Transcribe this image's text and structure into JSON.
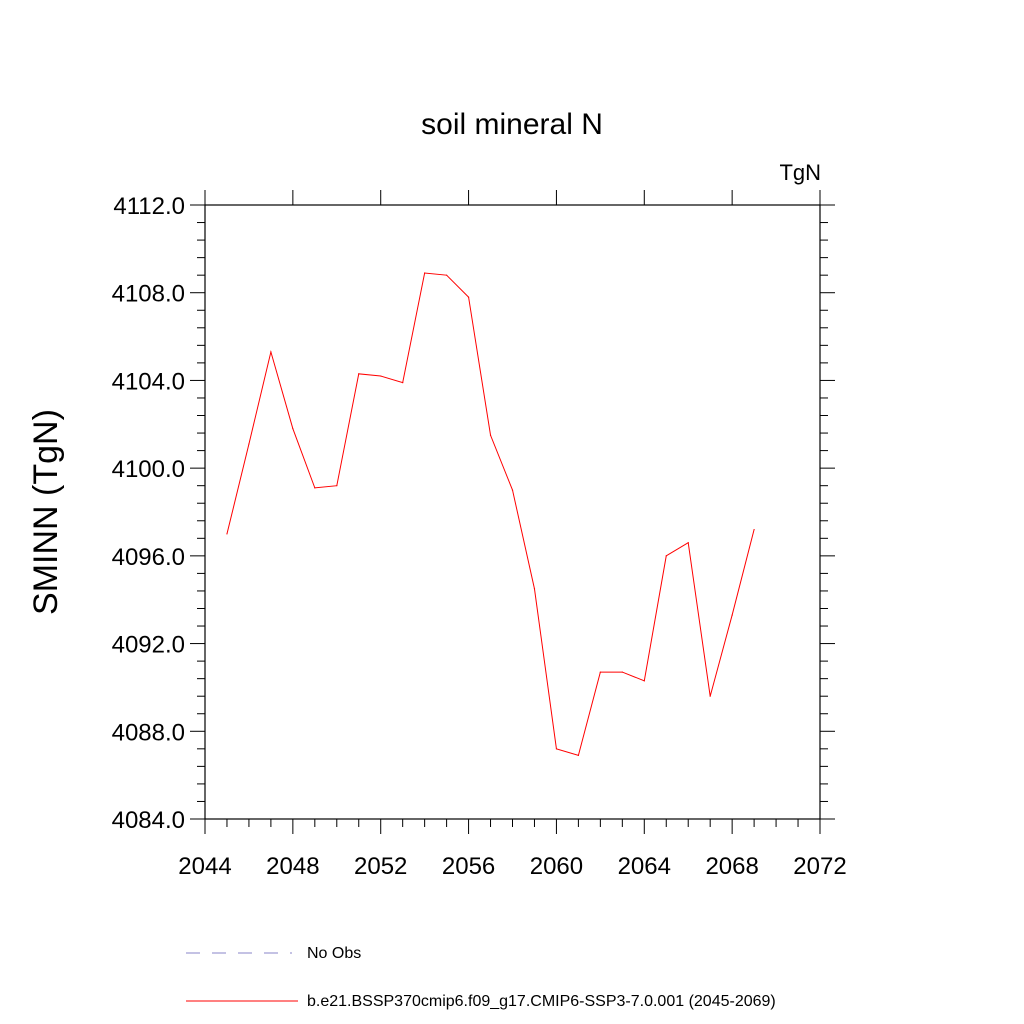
{
  "chart_data": {
    "type": "line",
    "title": "soil mineral N",
    "units_label": "TgN",
    "ylabel": "SMINN  (TgN)",
    "xlabel": "",
    "xlim": [
      2044,
      2072
    ],
    "ylim": [
      4084.0,
      4112.0
    ],
    "x_ticks": [
      "2044",
      "2048",
      "2052",
      "2056",
      "2060",
      "2064",
      "2068",
      "2072"
    ],
    "y_ticks": [
      "4084.0",
      "4088.0",
      "4092.0",
      "4096.0",
      "4100.0",
      "4104.0",
      "4108.0",
      "4112.0"
    ],
    "grid": false,
    "series": [
      {
        "name": "b.e21.BSSP370cmip6.f09_g17.CMIP6-SSP3-7.0.001 (2045-2069)",
        "color": "#ff0000",
        "x": [
          2045,
          2046,
          2047,
          2048,
          2049,
          2050,
          2051,
          2052,
          2053,
          2054,
          2055,
          2056,
          2057,
          2058,
          2059,
          2060,
          2061,
          2062,
          2063,
          2064,
          2065,
          2066,
          2067,
          2068,
          2069
        ],
        "y": [
          4097.0,
          4101.1,
          4105.3,
          4101.8,
          4099.1,
          4099.2,
          4104.3,
          4104.2,
          4103.9,
          4108.9,
          4108.8,
          4107.8,
          4101.5,
          4099.0,
          4094.5,
          4087.2,
          4086.9,
          4090.7,
          4090.7,
          4090.3,
          4096.0,
          4096.6,
          4089.6,
          4093.3,
          4097.2
        ]
      }
    ],
    "legend": {
      "position": "bottom",
      "entries": [
        {
          "label": "No Obs",
          "color": "#8a84c8",
          "style": "dashed"
        },
        {
          "label": "b.e21.BSSP370cmip6.f09_g17.CMIP6-SSP3-7.0.001 (2045-2069)",
          "color": "#ff0000",
          "style": "solid"
        }
      ]
    }
  }
}
